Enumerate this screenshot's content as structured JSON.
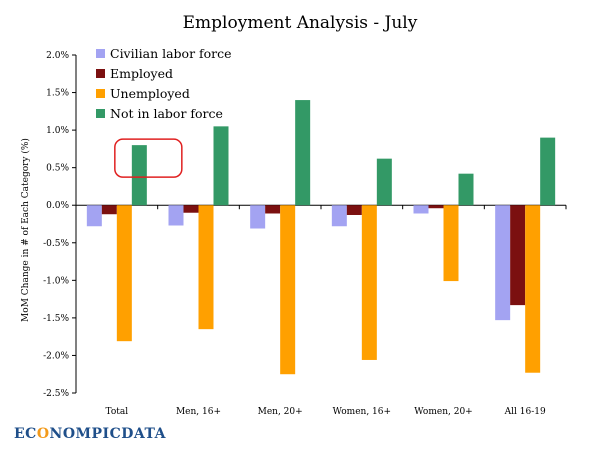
{
  "chart_data": {
    "type": "bar",
    "title": "Employment Analysis - July",
    "xlabel": "",
    "ylabel": "MoM Change in # of Each Category (%)",
    "ylim": [
      -2.5,
      2.0
    ],
    "yticks": [
      "2.0%",
      "1.5%",
      "1.0%",
      "0.5%",
      "0.0%",
      "-0.5%",
      "-1.0%",
      "-1.5%",
      "-2.0%",
      "-2.5%"
    ],
    "ytick_values": [
      2.0,
      1.5,
      1.0,
      0.5,
      0.0,
      -0.5,
      -1.0,
      -1.5,
      -2.0,
      -2.5
    ],
    "categories": [
      "Total",
      "Men, 16+",
      "Men, 20+",
      "Women, 16+",
      "Women, 20+",
      "All 16-19"
    ],
    "series": [
      {
        "name": "Civilian labor force",
        "color": "#a3a3f2",
        "values": [
          -0.28,
          -0.27,
          -0.31,
          -0.28,
          -0.11,
          -1.53
        ]
      },
      {
        "name": "Employed",
        "color": "#7b1010",
        "values": [
          -0.12,
          -0.1,
          -0.11,
          -0.13,
          -0.04,
          -1.33
        ]
      },
      {
        "name": "Unemployed",
        "color": "#ffa000",
        "values": [
          -1.81,
          -1.65,
          -2.25,
          -2.06,
          -1.01,
          -2.23
        ]
      },
      {
        "name": "Not in labor force",
        "color": "#339966",
        "values": [
          0.8,
          1.05,
          1.4,
          0.62,
          0.42,
          0.9
        ]
      }
    ],
    "legend_position": "top-left",
    "grid": false,
    "annotation": {
      "type": "rounded-rectangle",
      "color": "#e02020",
      "category": "Total",
      "series": "Not in labor force"
    }
  },
  "watermark": {
    "prefix": "EC",
    "o": "O",
    "rest": "NOMPICDATA"
  }
}
